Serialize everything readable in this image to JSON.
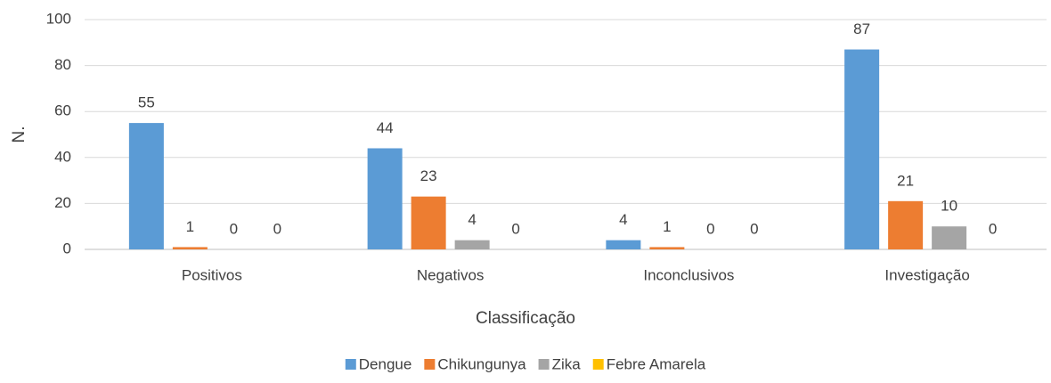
{
  "chart_data": {
    "type": "bar",
    "categories": [
      "Positivos",
      "Negativos",
      "Inconclusivos",
      "Investigação"
    ],
    "series": [
      {
        "name": "Dengue",
        "color": "#5b9bd5",
        "values": [
          55,
          44,
          4,
          87
        ]
      },
      {
        "name": "Chikungunya",
        "color": "#ed7d31",
        "values": [
          1,
          23,
          1,
          21
        ]
      },
      {
        "name": "Zika",
        "color": "#a5a5a5",
        "values": [
          0,
          4,
          0,
          10
        ]
      },
      {
        "name": "Febre Amarela",
        "color": "#ffc000",
        "values": [
          0,
          0,
          0,
          0
        ]
      }
    ],
    "xlabel": "Classificação",
    "ylabel": "N.",
    "ylim": [
      0,
      100
    ],
    "yticks": [
      0,
      20,
      40,
      60,
      80,
      100
    ],
    "grid": true,
    "legend": "bottom"
  }
}
